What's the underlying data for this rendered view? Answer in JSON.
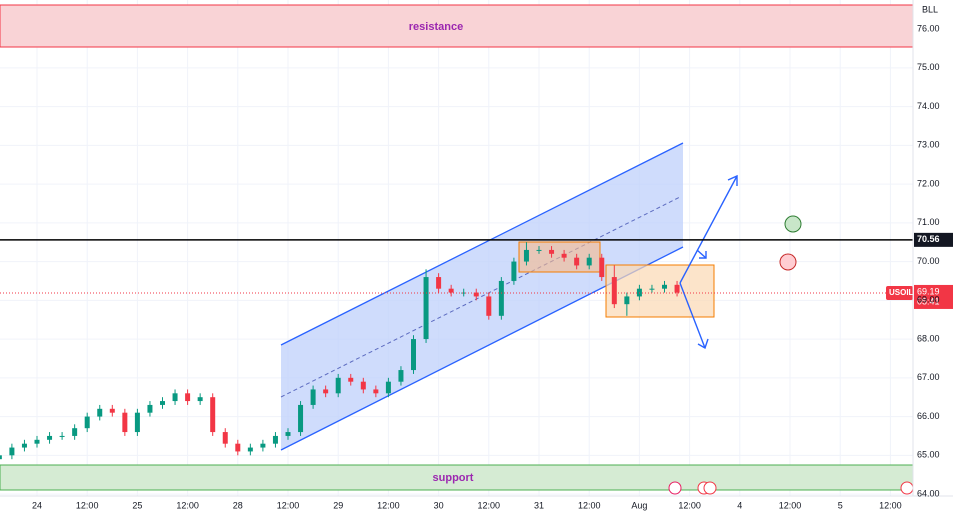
{
  "chart_data": {
    "type": "candlestick",
    "symbol": "USOIL",
    "corner_label": "BLL",
    "countdown": "05:41",
    "resistance_label": "resistance",
    "support_label": "support",
    "level": 70.56,
    "last_price": 69.19,
    "up_color": "#089981",
    "down_color": "#f23645",
    "xlim": [
      -0.737,
      17.45
    ],
    "ylim": [
      63.95,
      76.75
    ],
    "grid": true,
    "xticks": [
      {
        "value": 0,
        "label": "24"
      },
      {
        "value": 1,
        "label": "12:00"
      },
      {
        "value": 2,
        "label": "25"
      },
      {
        "value": 3,
        "label": "12:00"
      },
      {
        "value": 4,
        "label": "28"
      },
      {
        "value": 5,
        "label": "12:00"
      },
      {
        "value": 6,
        "label": "29"
      },
      {
        "value": 7,
        "label": "12:00"
      },
      {
        "value": 8,
        "label": "30"
      },
      {
        "value": 9,
        "label": "12:00"
      },
      {
        "value": 10,
        "label": "31"
      },
      {
        "value": 11,
        "label": "12:00"
      },
      {
        "value": 12,
        "label": "Aug"
      },
      {
        "value": 13,
        "label": "12:00"
      },
      {
        "value": 14,
        "label": "4"
      },
      {
        "value": 15,
        "label": "12:00"
      },
      {
        "value": 16,
        "label": "5"
      },
      {
        "value": 17,
        "label": "12:00"
      }
    ],
    "yticks": [
      {
        "value": 64,
        "label": "64.00"
      },
      {
        "value": 65,
        "label": "65.00"
      },
      {
        "value": 66,
        "label": "66.00"
      },
      {
        "value": 67,
        "label": "67.00"
      },
      {
        "value": 68,
        "label": "68.00"
      },
      {
        "value": 69,
        "label": "69.00"
      },
      {
        "value": 70,
        "label": "70.00"
      },
      {
        "value": 71,
        "label": "71.00"
      },
      {
        "value": 72,
        "label": "72.00"
      },
      {
        "value": 73,
        "label": "73.00"
      },
      {
        "value": 74,
        "label": "74.00"
      },
      {
        "value": 75,
        "label": "75.00"
      },
      {
        "value": 76,
        "label": "76.00"
      }
    ],
    "x": [
      -0.75,
      -0.5,
      -0.25,
      0,
      0.25,
      0.5,
      0.75,
      1,
      1.25,
      1.5,
      1.75,
      2,
      2.25,
      2.5,
      2.75,
      3,
      3.25,
      3.5,
      3.75,
      4,
      4.25,
      4.5,
      4.75,
      5,
      5.25,
      5.5,
      5.75,
      6,
      6.25,
      6.5,
      6.75,
      7,
      7.25,
      7.5,
      7.75,
      8,
      8.25,
      8.5,
      8.75,
      9,
      9.25,
      9.5,
      9.75,
      10,
      10.25,
      10.5,
      10.75,
      11,
      11.25,
      11.5,
      11.75,
      12,
      12.25,
      12.5,
      12.75
    ],
    "open": [
      64.9,
      65.0,
      65.2,
      65.3,
      65.4,
      65.5,
      65.5,
      65.7,
      66.0,
      66.2,
      66.1,
      65.6,
      66.1,
      66.3,
      66.4,
      66.6,
      66.4,
      66.5,
      65.6,
      65.3,
      65.1,
      65.2,
      65.3,
      65.5,
      65.6,
      66.3,
      66.7,
      66.6,
      67.0,
      66.9,
      66.7,
      66.6,
      66.9,
      67.2,
      68.0,
      69.6,
      69.3,
      69.2,
      69.2,
      69.1,
      68.6,
      69.5,
      70.0,
      70.3,
      70.3,
      70.2,
      70.1,
      69.9,
      70.1,
      69.6,
      68.9,
      69.1,
      69.3,
      69.3,
      69.4
    ],
    "high": [
      65.1,
      65.3,
      65.4,
      65.5,
      65.6,
      65.6,
      65.8,
      66.1,
      66.3,
      66.3,
      66.2,
      66.2,
      66.4,
      66.5,
      66.7,
      66.7,
      66.6,
      66.6,
      65.7,
      65.4,
      65.3,
      65.4,
      65.6,
      65.7,
      66.4,
      66.8,
      66.8,
      67.1,
      67.1,
      67.0,
      66.8,
      67.0,
      67.3,
      68.1,
      69.8,
      69.7,
      69.4,
      69.3,
      69.3,
      69.2,
      69.6,
      70.1,
      70.5,
      70.4,
      70.4,
      70.3,
      70.2,
      70.2,
      70.2,
      69.9,
      69.2,
      69.4,
      69.4,
      69.5,
      69.5
    ],
    "low": [
      64.8,
      64.9,
      65.1,
      65.2,
      65.3,
      65.4,
      65.4,
      65.6,
      65.9,
      66.0,
      65.5,
      65.5,
      66.0,
      66.2,
      66.3,
      66.3,
      66.3,
      65.5,
      65.2,
      65.0,
      65.0,
      65.1,
      65.2,
      65.4,
      65.5,
      66.2,
      66.5,
      66.5,
      66.8,
      66.6,
      66.5,
      66.5,
      66.8,
      67.1,
      67.9,
      69.2,
      69.1,
      69.1,
      69.0,
      68.5,
      68.5,
      69.4,
      69.9,
      70.2,
      70.1,
      70.0,
      69.8,
      69.8,
      69.5,
      68.8,
      68.6,
      69.0,
      69.2,
      69.2,
      69.1
    ],
    "close": [
      65.0,
      65.2,
      65.3,
      65.4,
      65.5,
      65.5,
      65.7,
      66.0,
      66.2,
      66.1,
      65.6,
      66.1,
      66.3,
      66.4,
      66.6,
      66.4,
      66.5,
      65.6,
      65.3,
      65.1,
      65.2,
      65.3,
      65.5,
      65.6,
      66.3,
      66.7,
      66.6,
      67.0,
      66.9,
      66.7,
      66.6,
      66.9,
      67.2,
      68.0,
      69.6,
      69.3,
      69.2,
      69.2,
      69.1,
      68.6,
      69.5,
      70.0,
      70.3,
      70.3,
      70.2,
      70.1,
      69.9,
      70.1,
      69.6,
      68.9,
      69.1,
      69.3,
      69.3,
      69.4,
      69.2
    ]
  }
}
